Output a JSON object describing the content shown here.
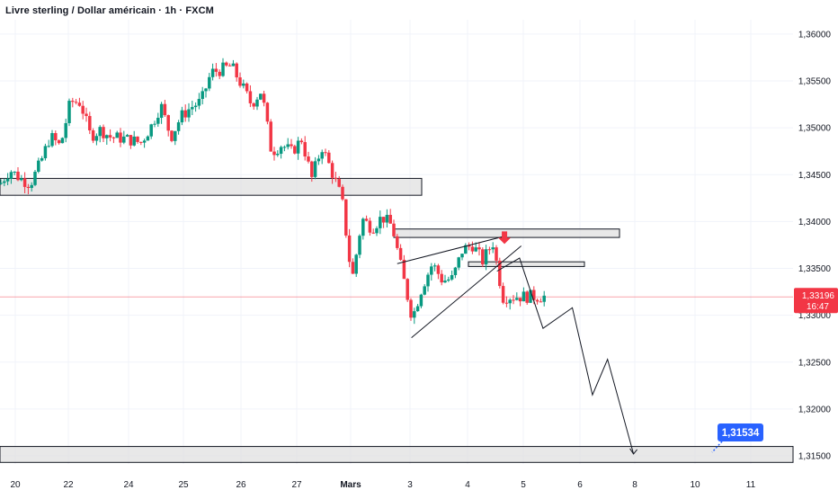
{
  "header": {
    "title": "Livre sterling / Dollar américain · 1h · FXCM"
  },
  "colors": {
    "up": "#089981",
    "down": "#f23645",
    "zone_fill": "#e0e0e0",
    "zone_stroke": "#131722",
    "target_badge": "#2962ff",
    "current_price_line": "#f23645"
  },
  "chart_data": {
    "type": "candlestick",
    "title": "Livre sterling / Dollar américain · 1h · FXCM",
    "xlabel": "",
    "ylabel": "",
    "ylim": [
      1.314,
      1.361
    ],
    "y_ticks": [
      "1,36000",
      "1,35500",
      "1,35000",
      "1,34500",
      "1,34000",
      "1,33500",
      "1,33000",
      "1,32500",
      "1,32000",
      "1,31500"
    ],
    "x_ticks": [
      "20",
      "22",
      "24",
      "25",
      "26",
      "27",
      "Mars",
      "3",
      "4",
      "5",
      "6",
      "8",
      "10",
      "11"
    ],
    "current_price": {
      "value": "1,33196",
      "countdown": "16:47",
      "level": 1.33196
    },
    "target": {
      "label": "1,31534",
      "level": 1.31534
    },
    "zones": [
      {
        "name": "support-zone-upper",
        "from": 1.3428,
        "to": 1.3446
      },
      {
        "name": "resistance-zone",
        "from": 1.3383,
        "to": 1.3392
      },
      {
        "name": "retest-zone",
        "from": 1.3352,
        "to": 1.3357
      },
      {
        "name": "target-zone",
        "from": 1.3143,
        "to": 1.316
      }
    ],
    "wedge_lines": [
      {
        "from": [
          0.474,
          1.3355
        ],
        "to": [
          0.605,
          1.3385
        ]
      },
      {
        "from": [
          0.491,
          1.3276
        ],
        "to": [
          0.622,
          1.3374
        ]
      }
    ],
    "projection_path": [
      [
        0.593,
        1.3347
      ],
      [
        0.62,
        1.3361
      ],
      [
        0.648,
        1.3286
      ],
      [
        0.683,
        1.3308
      ],
      [
        0.707,
        1.3215
      ],
      [
        0.725,
        1.3253
      ],
      [
        0.756,
        1.3152
      ]
    ],
    "signal_arrow": {
      "x": 0.602,
      "level": 1.3376
    },
    "candle_path": [
      [
        0.0,
        1.344
      ],
      [
        0.012,
        1.3455
      ],
      [
        0.024,
        1.3446
      ],
      [
        0.036,
        1.344
      ],
      [
        0.048,
        1.3462
      ],
      [
        0.06,
        1.3491
      ],
      [
        0.072,
        1.348
      ],
      [
        0.084,
        1.3528
      ],
      [
        0.096,
        1.3527
      ],
      [
        0.108,
        1.3491
      ],
      [
        0.12,
        1.3498
      ],
      [
        0.132,
        1.349
      ],
      [
        0.144,
        1.3489
      ],
      [
        0.156,
        1.3487
      ],
      [
        0.168,
        1.3484
      ],
      [
        0.18,
        1.3501
      ],
      [
        0.192,
        1.3524
      ],
      [
        0.204,
        1.349
      ],
      [
        0.216,
        1.3512
      ],
      [
        0.228,
        1.3522
      ],
      [
        0.24,
        1.3528
      ],
      [
        0.252,
        1.3559
      ],
      [
        0.264,
        1.3562
      ],
      [
        0.276,
        1.3566
      ],
      [
        0.288,
        1.3546
      ],
      [
        0.3,
        1.3525
      ],
      [
        0.312,
        1.354
      ],
      [
        0.324,
        1.3474
      ],
      [
        0.336,
        1.3482
      ],
      [
        0.348,
        1.3474
      ],
      [
        0.36,
        1.3488
      ],
      [
        0.372,
        1.3446
      ],
      [
        0.384,
        1.348
      ],
      [
        0.396,
        1.3453
      ],
      [
        0.408,
        1.3424
      ],
      [
        0.42,
        1.3337
      ],
      [
        0.432,
        1.3403
      ],
      [
        0.444,
        1.3393
      ],
      [
        0.456,
        1.3405
      ],
      [
        0.468,
        1.3395
      ],
      [
        0.48,
        1.3345
      ],
      [
        0.492,
        1.3297
      ],
      [
        0.504,
        1.3331
      ],
      [
        0.516,
        1.3355
      ],
      [
        0.528,
        1.3337
      ],
      [
        0.54,
        1.3339
      ],
      [
        0.552,
        1.337
      ],
      [
        0.564,
        1.3375
      ],
      [
        0.576,
        1.3358
      ],
      [
        0.588,
        1.3378
      ],
      [
        0.6,
        1.3319
      ],
      [
        0.606,
        1.332
      ]
    ]
  }
}
